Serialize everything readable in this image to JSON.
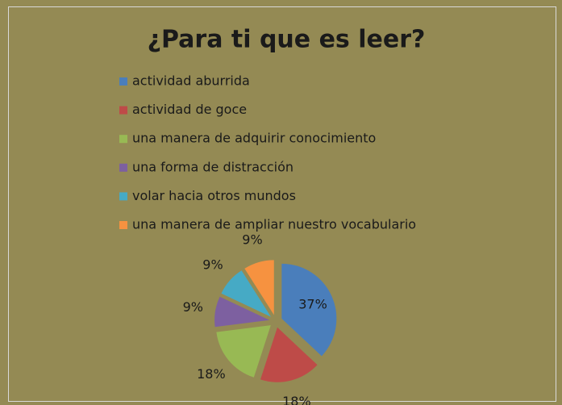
{
  "chart_data": {
    "type": "pie",
    "title": "¿Para ti que es leer?",
    "categories": [
      "actividad aburrida",
      "actividad de goce",
      "una manera de adquirir conocimiento",
      "una forma de distracción",
      "volar hacia otros mundos",
      "una manera de ampliar nuestro vocabulario"
    ],
    "values": [
      37,
      18,
      18,
      9,
      9,
      9
    ],
    "value_labels": [
      "37%",
      "18%",
      "18%",
      "9%",
      "9%",
      "9%"
    ],
    "colors": [
      "#4a7ebb",
      "#be4b48",
      "#98b954",
      "#7d60a0",
      "#46aac5",
      "#f69240"
    ],
    "legend": "top"
  }
}
